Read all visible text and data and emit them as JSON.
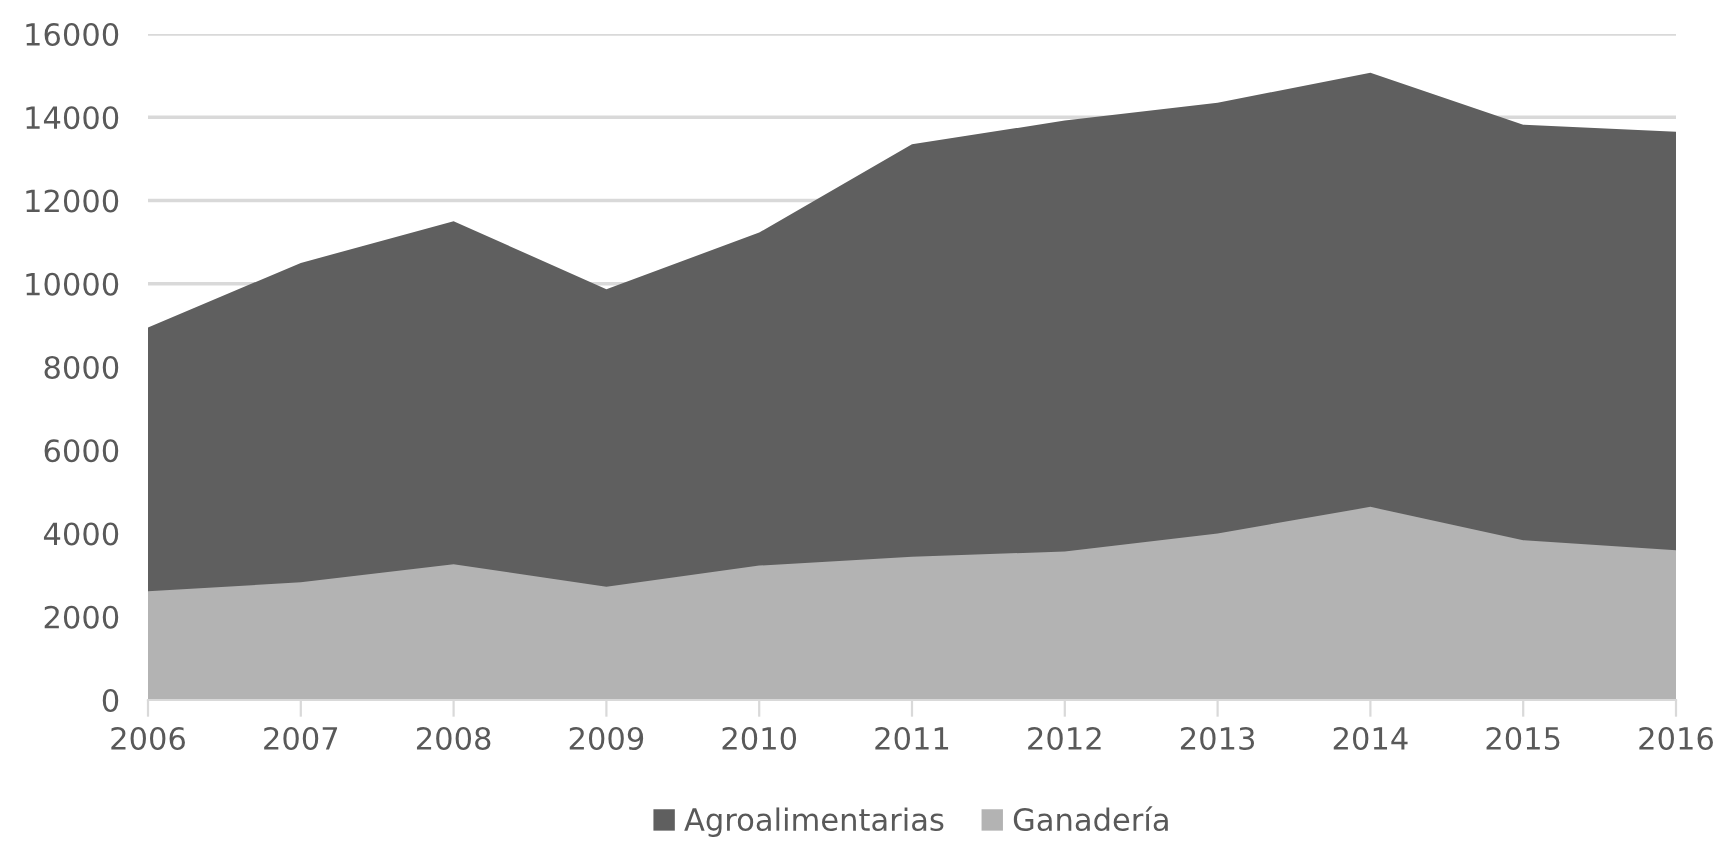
{
  "chart_data": {
    "type": "area",
    "categories": [
      "2006",
      "2007",
      "2008",
      "2009",
      "2010",
      "2011",
      "2012",
      "2013",
      "2014",
      "2015",
      "2016"
    ],
    "series": [
      {
        "name": "Agroalimentarias",
        "color": "#5f5f5f",
        "values": [
          8950,
          10500,
          11500,
          9870,
          11230,
          13350,
          13920,
          14350,
          15070,
          13820,
          13650
        ]
      },
      {
        "name": "Ganadería",
        "color": "#b3b3b3",
        "values": [
          2610,
          2830,
          3260,
          2720,
          3230,
          3440,
          3570,
          4000,
          4640,
          3840,
          3600
        ]
      }
    ],
    "ylim": [
      0,
      16000
    ],
    "yticks": [
      0,
      2000,
      4000,
      6000,
      8000,
      10000,
      12000,
      14000,
      16000
    ],
    "grid": "y",
    "legend": "bottom"
  }
}
